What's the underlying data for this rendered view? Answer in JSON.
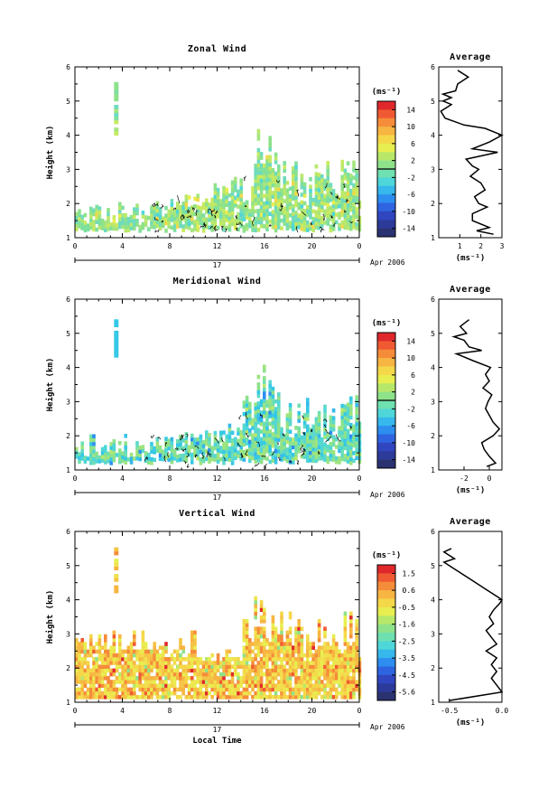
{
  "date_label": "Apr 2006",
  "day_label": "17",
  "x_axis_title": "Local Time",
  "units_label": "(ms⁻¹)",
  "profile_units_label": "(ms⁻¹)",
  "profile_title": "Average",
  "y_axis_title": "Height (km)",
  "chart_data": [
    {
      "type": "heatmap",
      "title": "Zonal Wind",
      "xlabel": "",
      "ylabel": "Height (km)",
      "xlim": [
        0,
        24
      ],
      "ylim": [
        1,
        6
      ],
      "x_ticks": [
        "0",
        "4",
        "8",
        "12",
        "16",
        "20",
        "0"
      ],
      "y_ticks": [
        "1",
        "2",
        "3",
        "4",
        "5",
        "6"
      ],
      "colorbar": {
        "range": [
          -16,
          16
        ],
        "ticks": [
          "14",
          "10",
          "6",
          "2",
          "-2",
          "-6",
          "-10",
          "-14"
        ],
        "units": "(ms⁻¹)"
      },
      "dominant_value_range": [
        0,
        4
      ],
      "profile": {
        "title": "Average",
        "xlim": [
          0,
          3
        ],
        "x_ticks": [
          "1",
          "2",
          "3"
        ],
        "xlabel": "(ms⁻¹)",
        "height": [
          1.1,
          1.2,
          1.3,
          1.5,
          1.7,
          1.9,
          2.0,
          2.2,
          2.4,
          2.6,
          2.8,
          3.0,
          3.1,
          3.3,
          3.5,
          3.6,
          3.8,
          4.0,
          4.2,
          4.3,
          4.5,
          4.7,
          4.9,
          5.0,
          5.1,
          5.2,
          5.3,
          5.5,
          5.7,
          5.9
        ],
        "value": [
          2.6,
          1.8,
          2.4,
          1.6,
          1.6,
          2.3,
          1.9,
          1.7,
          2.2,
          2.0,
          1.5,
          1.9,
          1.6,
          1.3,
          2.8,
          1.6,
          2.4,
          3.0,
          2.2,
          1.2,
          0.3,
          0.1,
          0.6,
          0.2,
          0.6,
          0.2,
          0.8,
          0.9,
          1.4,
          0.9
        ]
      }
    },
    {
      "type": "heatmap",
      "title": "Meridional Wind",
      "xlabel": "",
      "ylabel": "Height (km)",
      "xlim": [
        0,
        24
      ],
      "ylim": [
        1,
        6
      ],
      "x_ticks": [
        "0",
        "4",
        "8",
        "12",
        "16",
        "20",
        "0"
      ],
      "y_ticks": [
        "1",
        "2",
        "3",
        "4",
        "5",
        "6"
      ],
      "colorbar": {
        "range": [
          -16,
          16
        ],
        "ticks": [
          "14",
          "10",
          "6",
          "2",
          "-2",
          "-6",
          "-10",
          "-14"
        ],
        "units": "(ms⁻¹)"
      },
      "dominant_value_range": [
        -4,
        2
      ],
      "profile": {
        "title": "Average",
        "xlim": [
          -4,
          1
        ],
        "x_ticks": [
          "-2",
          "0"
        ],
        "xlabel": "(ms⁻¹)",
        "height": [
          1.1,
          1.2,
          1.4,
          1.6,
          1.8,
          2.0,
          2.2,
          2.4,
          2.6,
          2.8,
          3.0,
          3.2,
          3.4,
          3.6,
          3.8,
          4.0,
          4.2,
          4.4,
          4.5,
          4.6,
          4.8,
          4.9,
          5.0,
          5.2,
          5.4
        ],
        "value": [
          -0.2,
          0.5,
          0.0,
          -0.4,
          -0.6,
          0.3,
          0.8,
          0.3,
          0.0,
          -0.3,
          -0.1,
          0.2,
          -0.5,
          0.0,
          -0.3,
          0.1,
          -1.3,
          -2.6,
          -0.6,
          -1.6,
          -2.0,
          -2.8,
          -1.8,
          -2.3,
          -1.6
        ]
      }
    },
    {
      "type": "heatmap",
      "title": "Vertical Wind",
      "xlabel": "Local Time",
      "ylabel": "Height (km)",
      "xlim": [
        0,
        24
      ],
      "ylim": [
        1,
        6
      ],
      "x_ticks": [
        "0",
        "4",
        "8",
        "12",
        "16",
        "20",
        "0"
      ],
      "y_ticks": [
        "1",
        "2",
        "3",
        "4",
        "5",
        "6"
      ],
      "colorbar": {
        "range": [
          -6,
          2
        ],
        "ticks": [
          "1.5",
          "0.6",
          "-0.5",
          "-1.6",
          "-2.5",
          "-3.5",
          "-4.5",
          "-5.6"
        ],
        "units": "(ms⁻¹)"
      },
      "dominant_value_range": [
        -1,
        1
      ],
      "profile": {
        "title": "Average",
        "xlim": [
          -0.6,
          0.0
        ],
        "x_ticks": [
          "-0.5",
          "0.0"
        ],
        "xlabel": "(ms⁻¹)",
        "height": [
          1.05,
          1.3,
          1.5,
          1.7,
          1.9,
          2.1,
          2.3,
          2.5,
          2.7,
          2.9,
          3.1,
          3.3,
          3.5,
          3.7,
          3.9,
          4.0,
          4.1,
          4.3,
          4.6,
          4.9,
          5.1,
          5.2,
          5.4,
          5.5
        ],
        "value": [
          -0.5,
          0.0,
          -0.05,
          -0.1,
          -0.05,
          -0.1,
          -0.05,
          -0.15,
          -0.05,
          -0.1,
          -0.15,
          -0.08,
          -0.12,
          -0.08,
          -0.02,
          0.0,
          -0.05,
          -0.15,
          -0.3,
          -0.45,
          -0.55,
          -0.45,
          -0.55,
          -0.48
        ]
      }
    }
  ]
}
